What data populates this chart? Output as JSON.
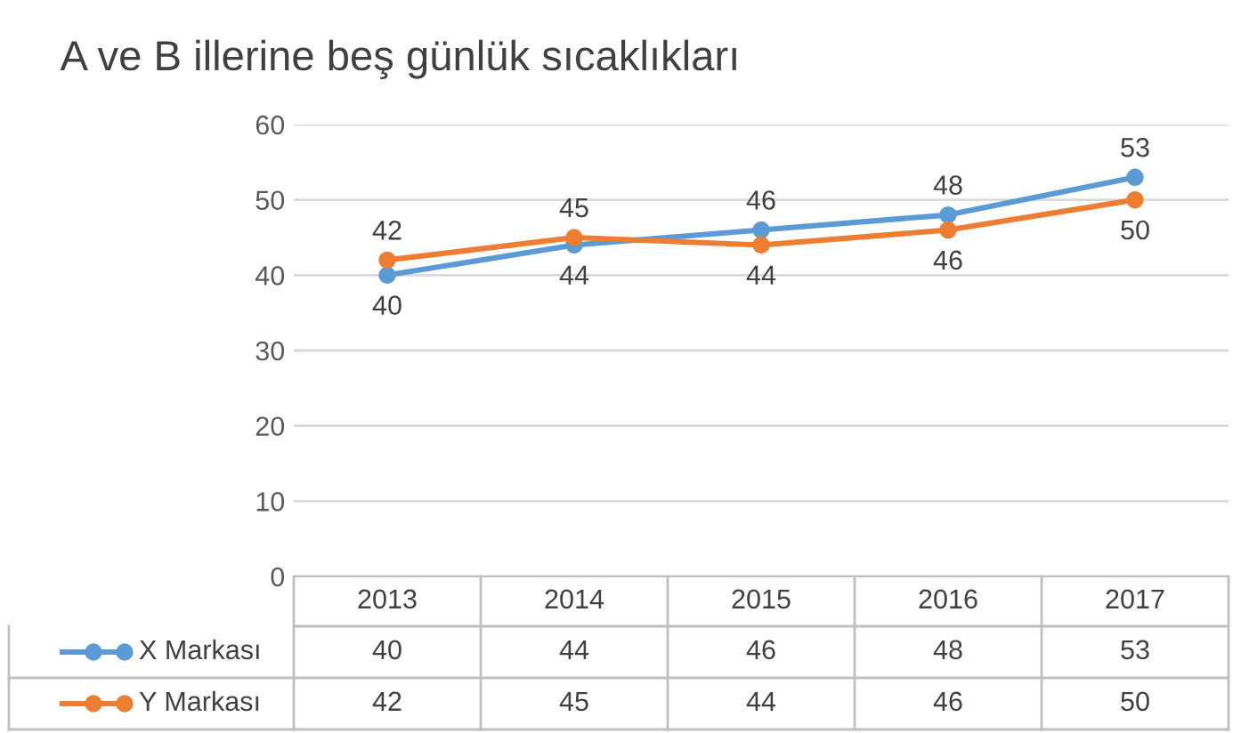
{
  "chart_data": {
    "type": "line",
    "title": "A ve B illerine beş günlük sıcaklıkları",
    "categories": [
      "2013",
      "2014",
      "2015",
      "2016",
      "2017"
    ],
    "series": [
      {
        "name": "X Markası",
        "color": "#5b9bd5",
        "values": [
          40,
          44,
          46,
          48,
          53
        ]
      },
      {
        "name": "Y Markası",
        "color": "#ed7d31",
        "values": [
          42,
          45,
          44,
          46,
          50
        ]
      }
    ],
    "annotations": [
      {
        "text": "40",
        "x": "2013",
        "y": 40
      },
      {
        "text": "44",
        "x": "2014",
        "y": 44
      },
      {
        "text": "46",
        "x": "2015",
        "y": 46
      },
      {
        "text": "48",
        "x": "2016",
        "y": 48
      },
      {
        "text": "53",
        "x": "2017",
        "y": 53
      },
      {
        "text": "42",
        "x": "2013",
        "y": 42
      },
      {
        "text": "45",
        "x": "2014",
        "y": 45
      },
      {
        "text": "44",
        "x": "2015",
        "y": 44
      },
      {
        "text": "46",
        "x": "2016",
        "y": 46
      },
      {
        "text": "50",
        "x": "2017",
        "y": 50
      }
    ],
    "ylim": [
      0,
      60
    ],
    "yticks": [
      0,
      10,
      20,
      30,
      40,
      50,
      60
    ],
    "grid": "y",
    "marker": "circle",
    "line_style": "solid",
    "legend": "bottom",
    "data_labels": true
  }
}
